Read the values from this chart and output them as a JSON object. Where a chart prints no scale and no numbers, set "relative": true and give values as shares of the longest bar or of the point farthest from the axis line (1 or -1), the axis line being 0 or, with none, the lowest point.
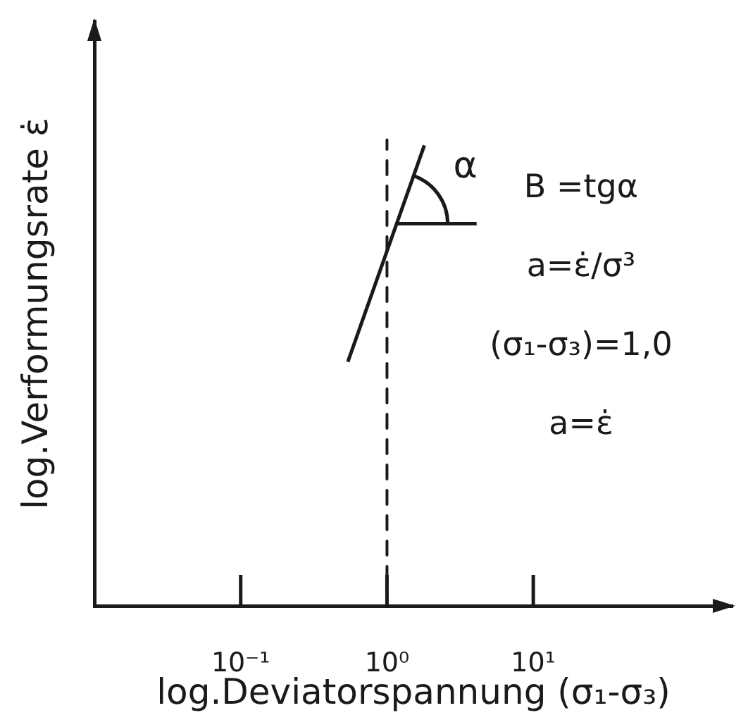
{
  "chart_data": {
    "type": "line",
    "xlabel": "log.Deviatorspannung (σ₁-σ₃)",
    "ylabel": "log.Verformungsrate ε̇",
    "log": "x",
    "relative": true,
    "grid": false,
    "legend": false,
    "marker": "none",
    "line_style": "solid",
    "xlim": [
      0.01,
      230
    ],
    "xticks": [
      {
        "value": 0.1,
        "label": "10⁻¹"
      },
      {
        "value": 1,
        "label": "10⁰"
      },
      {
        "value": 10,
        "label": "10¹"
      }
    ],
    "series": [
      {
        "type": "line",
        "color": "#1a1a1a",
        "x": [
          0.54,
          1.8
        ],
        "values": [
          0.53,
          1
        ]
      },
      {
        "type": "line",
        "color": "#1a1a1a",
        "x": [
          1.17,
          4.1
        ],
        "values": [
          0.83,
          0.83
        ]
      }
    ],
    "ref_lines": [
      {
        "axis": "x",
        "value": 1,
        "color": "#1a1a1a",
        "line_style": "dashed"
      }
    ],
    "annotations": [
      "α",
      "B =tgα",
      "a=ε̇/σ³",
      "(σ₁-σ₃)=1,0",
      "a=ε̇"
    ]
  }
}
